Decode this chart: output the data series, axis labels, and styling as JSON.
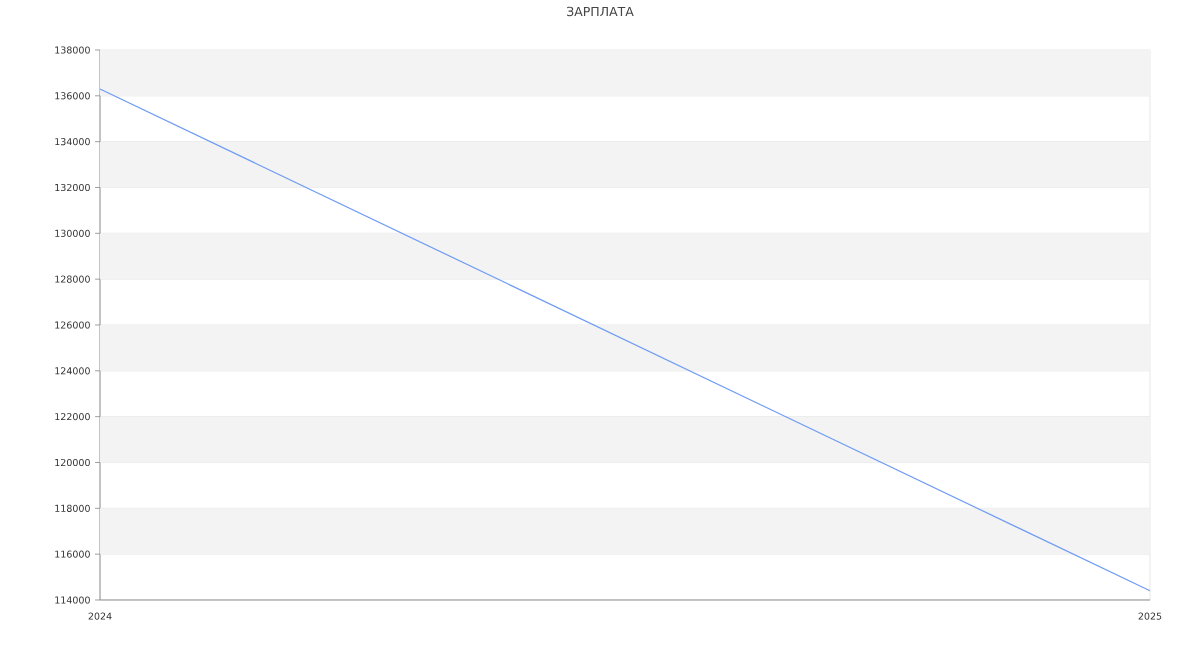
{
  "chart_data": {
    "type": "line",
    "title": "ЗАРПЛАТА",
    "x": [
      2024,
      2025
    ],
    "xlim": [
      2024,
      2025
    ],
    "xticks": [
      2024,
      2025
    ],
    "series": [
      {
        "color": "#6e9bf4",
        "values": [
          136300,
          114400
        ]
      }
    ],
    "ylim": [
      114000,
      138000
    ],
    "yticks": [
      114000,
      116000,
      118000,
      120000,
      122000,
      124000,
      126000,
      128000,
      130000,
      132000,
      134000,
      136000,
      138000
    ],
    "grid": true,
    "marker": "none",
    "line_style": "solid",
    "legend": false
  }
}
